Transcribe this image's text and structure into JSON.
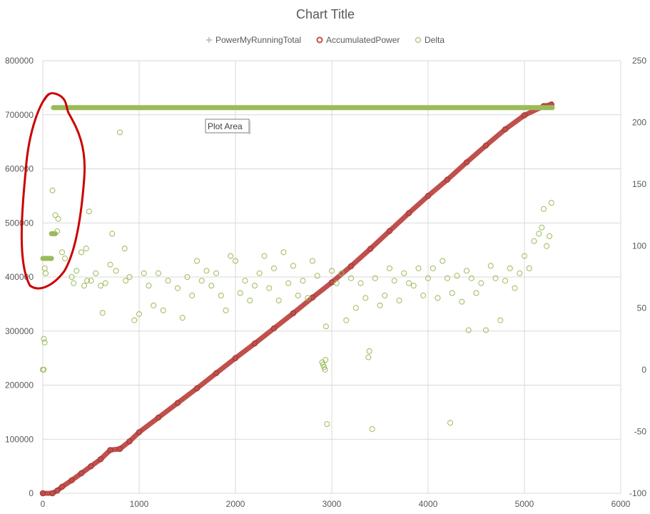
{
  "chart_data": {
    "type": "scatter",
    "title": "Chart Title",
    "x_range": [
      0,
      6000
    ],
    "x_ticks": [
      0,
      1000,
      2000,
      3000,
      4000,
      5000,
      6000
    ],
    "y_left_range": [
      0,
      800000
    ],
    "y_left_ticks": [
      0,
      100000,
      200000,
      300000,
      400000,
      500000,
      600000,
      700000,
      800000
    ],
    "y_right_range": [
      -100,
      250
    ],
    "y_right_ticks": [
      -100,
      -50,
      0,
      50,
      100,
      150,
      200,
      250
    ],
    "grid": true,
    "legend_position": "top",
    "tooltip": "Plot Area",
    "series": [
      {
        "name": "PowerMyRunningTotal",
        "axis": "left",
        "marker": "plus",
        "color": "#a5a5a5",
        "points": []
      },
      {
        "name": "AccumulatedPower",
        "axis": "left",
        "marker": "circle",
        "color": "#c0504d",
        "points": [
          [
            0,
            0
          ],
          [
            100,
            0
          ],
          [
            150,
            5000
          ],
          [
            200,
            12000
          ],
          [
            300,
            24000
          ],
          [
            400,
            37000
          ],
          [
            500,
            50000
          ],
          [
            600,
            63000
          ],
          [
            700,
            80000
          ],
          [
            800,
            82000
          ],
          [
            900,
            96000
          ],
          [
            1000,
            113000
          ],
          [
            1200,
            140000
          ],
          [
            1400,
            167000
          ],
          [
            1600,
            194000
          ],
          [
            1800,
            222000
          ],
          [
            2000,
            250000
          ],
          [
            2200,
            277000
          ],
          [
            2400,
            305000
          ],
          [
            2600,
            333000
          ],
          [
            2800,
            362000
          ],
          [
            3000,
            390000
          ],
          [
            3200,
            420000
          ],
          [
            3400,
            452000
          ],
          [
            3600,
            485000
          ],
          [
            3800,
            518000
          ],
          [
            4000,
            550000
          ],
          [
            4200,
            580000
          ],
          [
            4400,
            612000
          ],
          [
            4600,
            643000
          ],
          [
            4800,
            673000
          ],
          [
            5000,
            699000
          ],
          [
            5200,
            716000
          ],
          [
            5280,
            719000
          ]
        ]
      },
      {
        "name": "Delta",
        "axis": "right",
        "marker": "circle-open",
        "color": "#9bbb59",
        "flat_segments": [
          {
            "x_start": 0,
            "x_end": 90,
            "y": 90
          },
          {
            "x_start": 90,
            "x_end": 130,
            "y": 110
          },
          {
            "x_start": 110,
            "x_end": 5290,
            "y": 212
          }
        ],
        "points": [
          [
            0,
            0
          ],
          [
            10,
            0
          ],
          [
            10,
            25
          ],
          [
            20,
            22
          ],
          [
            20,
            82
          ],
          [
            30,
            78
          ],
          [
            100,
            145
          ],
          [
            130,
            125
          ],
          [
            150,
            112
          ],
          [
            160,
            122
          ],
          [
            200,
            95
          ],
          [
            230,
            90
          ],
          [
            300,
            75
          ],
          [
            320,
            70
          ],
          [
            350,
            80
          ],
          [
            400,
            95
          ],
          [
            430,
            68
          ],
          [
            450,
            98
          ],
          [
            460,
            72
          ],
          [
            480,
            128
          ],
          [
            500,
            72
          ],
          [
            550,
            78
          ],
          [
            600,
            68
          ],
          [
            620,
            46
          ],
          [
            650,
            70
          ],
          [
            700,
            85
          ],
          [
            720,
            110
          ],
          [
            760,
            80
          ],
          [
            800,
            192
          ],
          [
            850,
            98
          ],
          [
            860,
            72
          ],
          [
            900,
            75
          ],
          [
            950,
            40
          ],
          [
            1000,
            45
          ],
          [
            1050,
            78
          ],
          [
            1100,
            68
          ],
          [
            1150,
            52
          ],
          [
            1200,
            78
          ],
          [
            1250,
            48
          ],
          [
            1300,
            72
          ],
          [
            1400,
            66
          ],
          [
            1450,
            42
          ],
          [
            1500,
            75
          ],
          [
            1550,
            60
          ],
          [
            1600,
            88
          ],
          [
            1650,
            72
          ],
          [
            1700,
            80
          ],
          [
            1750,
            68
          ],
          [
            1800,
            78
          ],
          [
            1850,
            60
          ],
          [
            1900,
            48
          ],
          [
            1950,
            92
          ],
          [
            2000,
            88
          ],
          [
            2050,
            62
          ],
          [
            2100,
            72
          ],
          [
            2150,
            56
          ],
          [
            2200,
            68
          ],
          [
            2250,
            78
          ],
          [
            2300,
            92
          ],
          [
            2350,
            66
          ],
          [
            2400,
            82
          ],
          [
            2450,
            56
          ],
          [
            2500,
            95
          ],
          [
            2550,
            70
          ],
          [
            2600,
            84
          ],
          [
            2650,
            60
          ],
          [
            2700,
            72
          ],
          [
            2750,
            58
          ],
          [
            2800,
            88
          ],
          [
            2850,
            76
          ],
          [
            2900,
            6
          ],
          [
            2910,
            4
          ],
          [
            2920,
            2
          ],
          [
            2930,
            0
          ],
          [
            2935,
            8
          ],
          [
            2940,
            35
          ],
          [
            2950,
            -44
          ],
          [
            3000,
            80
          ],
          [
            3050,
            70
          ],
          [
            3100,
            78
          ],
          [
            3150,
            40
          ],
          [
            3200,
            74
          ],
          [
            3250,
            50
          ],
          [
            3300,
            70
          ],
          [
            3350,
            58
          ],
          [
            3380,
            10
          ],
          [
            3390,
            15
          ],
          [
            3420,
            -48
          ],
          [
            3450,
            74
          ],
          [
            3500,
            52
          ],
          [
            3550,
            60
          ],
          [
            3600,
            82
          ],
          [
            3650,
            72
          ],
          [
            3700,
            56
          ],
          [
            3750,
            78
          ],
          [
            3800,
            70
          ],
          [
            3850,
            68
          ],
          [
            3900,
            82
          ],
          [
            3950,
            60
          ],
          [
            4000,
            74
          ],
          [
            4050,
            82
          ],
          [
            4100,
            58
          ],
          [
            4150,
            88
          ],
          [
            4200,
            74
          ],
          [
            4230,
            -43
          ],
          [
            4250,
            62
          ],
          [
            4300,
            76
          ],
          [
            4350,
            55
          ],
          [
            4400,
            80
          ],
          [
            4420,
            32
          ],
          [
            4450,
            74
          ],
          [
            4500,
            62
          ],
          [
            4550,
            70
          ],
          [
            4600,
            32
          ],
          [
            4650,
            84
          ],
          [
            4700,
            74
          ],
          [
            4750,
            40
          ],
          [
            4800,
            72
          ],
          [
            4850,
            82
          ],
          [
            4900,
            66
          ],
          [
            4950,
            78
          ],
          [
            5000,
            92
          ],
          [
            5050,
            82
          ],
          [
            5100,
            104
          ],
          [
            5150,
            110
          ],
          [
            5180,
            115
          ],
          [
            5200,
            130
          ],
          [
            5230,
            100
          ],
          [
            5260,
            108
          ],
          [
            5280,
            135
          ]
        ]
      }
    ]
  }
}
